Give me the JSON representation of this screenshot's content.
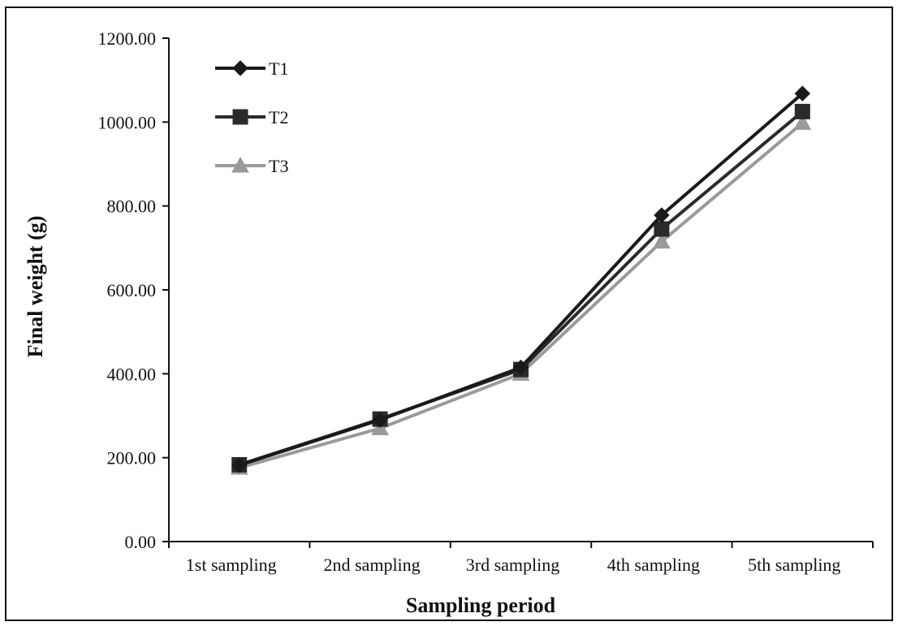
{
  "chart_data": {
    "type": "line",
    "categories": [
      "1st sampling",
      "2nd sampling",
      "3rd sampling",
      "4th sampling",
      "5th sampling"
    ],
    "series": [
      {
        "name": "T1",
        "values": [
          182,
          290,
          415,
          778,
          1068
        ],
        "color": "#1a1a1a",
        "marker": "diamond"
      },
      {
        "name": "T2",
        "values": [
          183,
          292,
          410,
          745,
          1025
        ],
        "color": "#2b2b2b",
        "marker": "square"
      },
      {
        "name": "T3",
        "values": [
          176,
          270,
          400,
          715,
          998
        ],
        "color": "#9a9a9a",
        "marker": "triangle"
      }
    ],
    "xlabel": "Sampling period",
    "ylabel": "Final weight (g)",
    "ylim": [
      0,
      1200
    ],
    "yticks": [
      "0.00",
      "200.00",
      "400.00",
      "600.00",
      "800.00",
      "1000.00",
      "1200.00"
    ],
    "grid": false,
    "legend_position": "top-left"
  }
}
